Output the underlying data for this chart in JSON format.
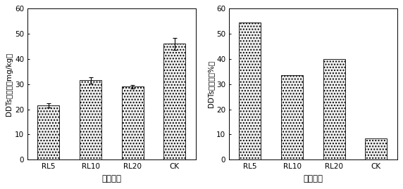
{
  "chart1": {
    "categories": [
      "RL5",
      "RL10",
      "RL20",
      "CK"
    ],
    "values": [
      21.5,
      31.5,
      29.0,
      46.0
    ],
    "errors": [
      0.8,
      1.2,
      0.8,
      2.5
    ],
    "ylabel": "DDTs残留量（mg/kg）",
    "xlabel": "不同处理",
    "ylim": [
      0,
      60
    ],
    "yticks": [
      0,
      10,
      20,
      30,
      40,
      50,
      60
    ]
  },
  "chart2": {
    "categories": [
      "RL5",
      "RL10",
      "RL20",
      "CK"
    ],
    "values": [
      54.5,
      33.5,
      40.0,
      8.5
    ],
    "errors": [
      0,
      0,
      0,
      0
    ],
    "ylabel": "DDTs降解率（%）",
    "xlabel": "不同处理",
    "ylim": [
      0,
      60
    ],
    "yticks": [
      0,
      10,
      20,
      30,
      40,
      50,
      60
    ]
  },
  "bar_color": "#ffffff",
  "bar_edgecolor": "#000000",
  "background_color": "#ffffff",
  "font_size": 7.5,
  "label_fontsize": 8.5
}
